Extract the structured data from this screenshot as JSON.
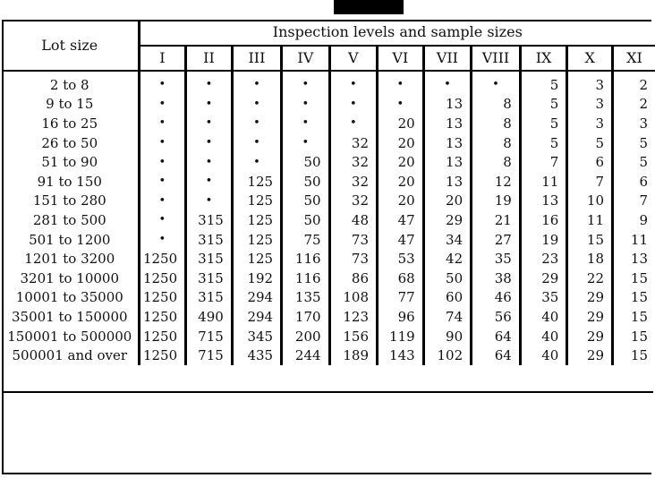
{
  "table": {
    "lot_size_header": "Lot size",
    "title": "Inspection levels and sample sizes",
    "levels": [
      "I",
      "II",
      "III",
      "IV",
      "V",
      "VI",
      "VII",
      "VIII",
      "IX",
      "X",
      "XI"
    ],
    "rows": [
      {
        "lot": "2 to 8",
        "values": [
          "•",
          "•",
          "•",
          "•",
          "•",
          "•",
          "•",
          "•",
          "5",
          "3",
          "2"
        ]
      },
      {
        "lot": "9 to 15",
        "values": [
          "•",
          "•",
          "•",
          "•",
          "•",
          "•",
          "13",
          "8",
          "5",
          "3",
          "2"
        ]
      },
      {
        "lot": "16 to 25",
        "values": [
          "•",
          "•",
          "•",
          "•",
          "•",
          "20",
          "13",
          "8",
          "5",
          "3",
          "3"
        ]
      },
      {
        "lot": "26 to 50",
        "values": [
          "•",
          "•",
          "•",
          "•",
          "32",
          "20",
          "13",
          "8",
          "5",
          "5",
          "5"
        ]
      },
      {
        "lot": "51 to 90",
        "values": [
          "•",
          "•",
          "•",
          "50",
          "32",
          "20",
          "13",
          "8",
          "7",
          "6",
          "5"
        ]
      },
      {
        "lot": "91 to 150",
        "values": [
          "•",
          "•",
          "125",
          "50",
          "32",
          "20",
          "13",
          "12",
          "11",
          "7",
          "6"
        ]
      },
      {
        "lot": "151 to 280",
        "values": [
          "•",
          "•",
          "125",
          "50",
          "32",
          "20",
          "20",
          "19",
          "13",
          "10",
          "7"
        ]
      },
      {
        "lot": "281 to 500",
        "values": [
          "•",
          "315",
          "125",
          "50",
          "48",
          "47",
          "29",
          "21",
          "16",
          "11",
          "9"
        ]
      },
      {
        "lot": "501 to 1200",
        "values": [
          "•",
          "315",
          "125",
          "75",
          "73",
          "47",
          "34",
          "27",
          "19",
          "15",
          "11"
        ]
      },
      {
        "lot": "1201 to 3200",
        "values": [
          "1250",
          "315",
          "125",
          "116",
          "73",
          "53",
          "42",
          "35",
          "23",
          "18",
          "13"
        ]
      },
      {
        "lot": "3201 to 10000",
        "values": [
          "1250",
          "315",
          "192",
          "116",
          "86",
          "68",
          "50",
          "38",
          "29",
          "22",
          "15"
        ]
      },
      {
        "lot": "10001 to 35000",
        "values": [
          "1250",
          "315",
          "294",
          "135",
          "108",
          "77",
          "60",
          "46",
          "35",
          "29",
          "15"
        ]
      },
      {
        "lot": "35001 to 150000",
        "values": [
          "1250",
          "490",
          "294",
          "170",
          "123",
          "96",
          "74",
          "56",
          "40",
          "29",
          "15"
        ]
      },
      {
        "lot": "150001 to 500000",
        "values": [
          "1250",
          "715",
          "345",
          "200",
          "156",
          "119",
          "90",
          "64",
          "40",
          "29",
          "15"
        ]
      },
      {
        "lot": "500001 and over",
        "values": [
          "1250",
          "715",
          "435",
          "244",
          "189",
          "143",
          "102",
          "64",
          "40",
          "29",
          "15"
        ]
      }
    ]
  }
}
